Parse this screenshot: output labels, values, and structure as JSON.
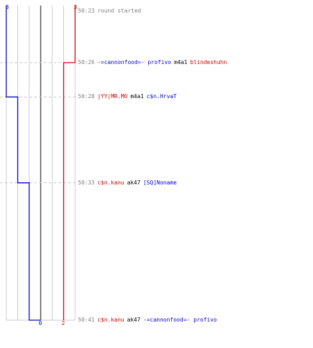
{
  "chart_data": {
    "type": "line",
    "title": "",
    "xlabel": "",
    "ylabel": "",
    "axis": {
      "x_min": 0,
      "x_max": 6,
      "zero_marker": 3,
      "time_start": "50:23",
      "time_end": "50:41"
    },
    "series": [
      {
        "color": "#0000cc",
        "start_label": "3",
        "end_label": "0",
        "points": [
          {
            "time": "50:23",
            "value": 0
          },
          {
            "time": "50:28",
            "value": 1
          },
          {
            "time": "50:33",
            "value": 2
          },
          {
            "time": "50:41",
            "value": 3
          }
        ]
      },
      {
        "color": "#cc0000",
        "start_label": "3",
        "end_label": "2",
        "points": [
          {
            "time": "50:23",
            "value": 6
          },
          {
            "time": "50:26",
            "value": 5
          },
          {
            "time": "50:41",
            "value": 5
          }
        ]
      }
    ],
    "events": [
      {
        "time": "50:23",
        "message": "round started"
      },
      {
        "time": "50:26",
        "killer": "-=cannonfood=- profivo",
        "killer_team": "blue",
        "weapon": "m4a1",
        "victim": "blindeshuhn",
        "victim_team": "red"
      },
      {
        "time": "50:28",
        "killer": "|YY|MR.MO",
        "killer_team": "red",
        "weapon": "m4a1",
        "victim": "c$n.HrvaT",
        "victim_team": "blue"
      },
      {
        "time": "50:33",
        "killer": "c$n.kanu",
        "killer_team": "red",
        "weapon": "ak47",
        "victim": "[SQ]Noname",
        "victim_team": "blue"
      },
      {
        "time": "50:41",
        "killer": "c$n.kanu",
        "killer_team": "red",
        "weapon": "ak47",
        "victim": "-=cannonfood=- profivo",
        "victim_team": "blue"
      }
    ]
  }
}
